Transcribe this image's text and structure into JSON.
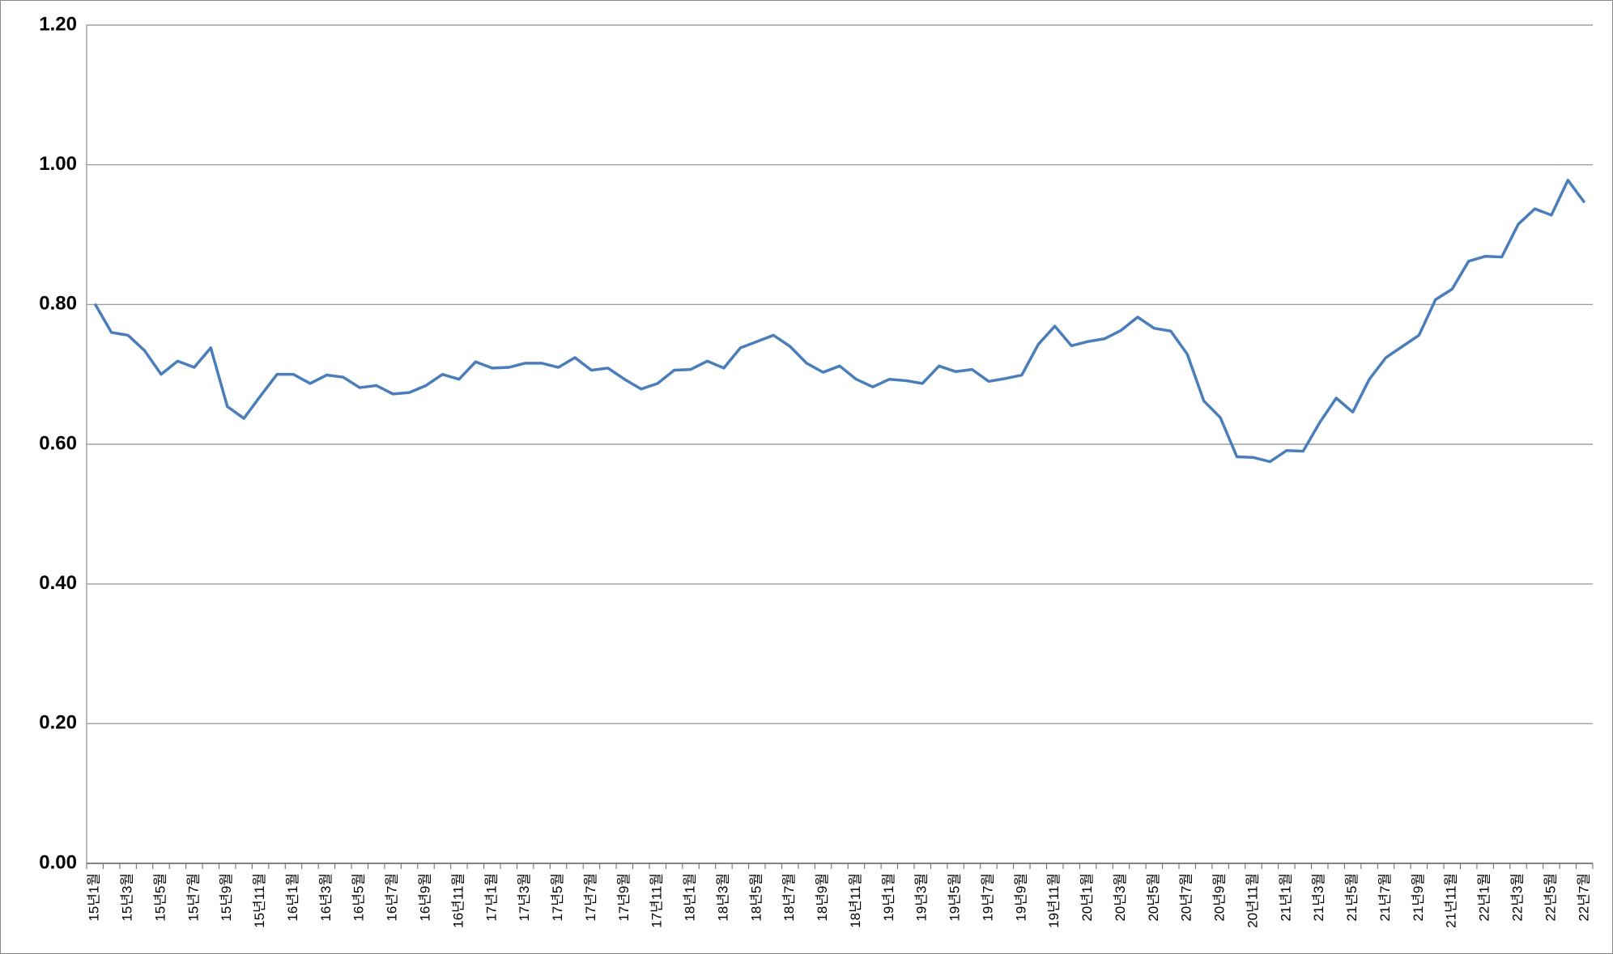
{
  "chart_data": {
    "type": "line",
    "categories": [
      "15년1월",
      null,
      "15년3월",
      null,
      "15년5월",
      null,
      "15년7월",
      null,
      "15년9월",
      null,
      "15년11월",
      null,
      "16년1월",
      null,
      "16년3월",
      null,
      "16년5월",
      null,
      "16년7월",
      null,
      "16년9월",
      null,
      "16년11월",
      null,
      "17년1월",
      null,
      "17년3월",
      null,
      "17년5월",
      null,
      "17년7월",
      null,
      "17년9월",
      null,
      "17년11월",
      null,
      "18년1월",
      null,
      "18년3월",
      null,
      "18년5월",
      null,
      "18년7월",
      null,
      "18년9월",
      null,
      "18년11월",
      null,
      "19년1월",
      null,
      "19년3월",
      null,
      "19년5월",
      null,
      "19년7월",
      null,
      "19년9월",
      null,
      "19년11월",
      null,
      "20년1월",
      null,
      "20년3월",
      null,
      "20년5월",
      null,
      "20년7월",
      null,
      "20년9월",
      null,
      "20년11월",
      null,
      "21년1월",
      null,
      "21년3월",
      null,
      "21년5월",
      null,
      "21년7월",
      null,
      "21년9월",
      null,
      "21년11월",
      null,
      "22년1월",
      null,
      "22년3월",
      null,
      "22년5월",
      null,
      "22년7월"
    ],
    "values": [
      0.801,
      0.76,
      0.756,
      0.734,
      0.7,
      0.719,
      0.71,
      0.738,
      0.654,
      0.637,
      0.669,
      0.7,
      0.7,
      0.687,
      0.699,
      0.696,
      0.681,
      0.684,
      0.672,
      0.674,
      0.684,
      0.7,
      0.693,
      0.718,
      0.709,
      0.71,
      0.716,
      0.716,
      0.71,
      0.724,
      0.706,
      0.709,
      0.693,
      0.679,
      0.687,
      0.706,
      0.707,
      0.719,
      0.709,
      0.738,
      0.747,
      0.756,
      0.74,
      0.716,
      0.703,
      0.712,
      0.693,
      0.682,
      0.693,
      0.691,
      0.687,
      0.712,
      0.704,
      0.707,
      0.69,
      0.694,
      0.699,
      0.743,
      0.769,
      0.741,
      0.747,
      0.751,
      0.763,
      0.782,
      0.766,
      0.762,
      0.729,
      0.662,
      0.638,
      0.582,
      0.581,
      0.575,
      0.591,
      0.59,
      0.631,
      0.666,
      0.646,
      0.693,
      0.724,
      0.74,
      0.756,
      0.807,
      0.822,
      0.862,
      0.869,
      0.868,
      0.915,
      0.937,
      0.928,
      0.978,
      0.946
    ],
    "color": "#4a7ebb",
    "ylim": [
      0,
      1.2
    ],
    "yticks": [
      {
        "value": 0,
        "label": "0.00"
      },
      {
        "value": 0.2,
        "label": "0.20"
      },
      {
        "value": 0.4,
        "label": "0.40"
      },
      {
        "value": 0.6,
        "label": "0.60"
      },
      {
        "value": 0.8,
        "label": "0.80"
      },
      {
        "value": 1.0,
        "label": "1.00"
      },
      {
        "value": 1.2,
        "label": "1.20"
      }
    ],
    "grid": true
  }
}
